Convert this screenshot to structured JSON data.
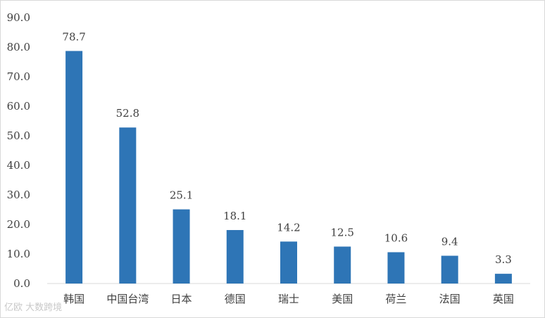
{
  "chart_data": {
    "type": "bar",
    "categories": [
      "韩国",
      "中国台湾",
      "日本",
      "德国",
      "瑞士",
      "美国",
      "荷兰",
      "法国",
      "英国"
    ],
    "values": [
      78.7,
      52.8,
      25.1,
      18.1,
      14.2,
      12.5,
      10.6,
      9.4,
      3.3
    ],
    "data_labels": [
      "78.7",
      "52.8",
      "25.1",
      "18.1",
      "14.2",
      "12.5",
      "10.6",
      "9.4",
      "3.3"
    ],
    "ylim": [
      0,
      90
    ],
    "yticks": [
      "0.0",
      "10.0",
      "20.0",
      "30.0",
      "40.0",
      "50.0",
      "60.0",
      "70.0",
      "80.0",
      "90.0"
    ],
    "grid": false,
    "bar_color": "#2e75b6"
  },
  "watermark": "亿欧 大数跨境"
}
